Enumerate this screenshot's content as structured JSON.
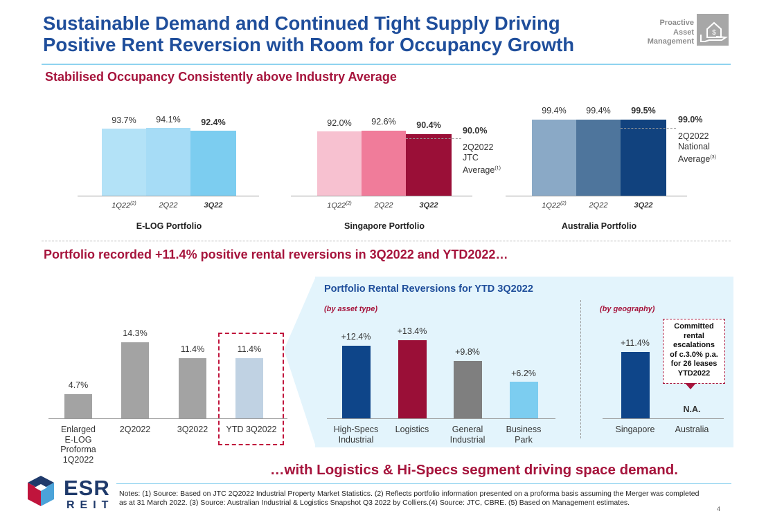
{
  "header": {
    "title_line1": "Sustainable Demand and Continued Tight Supply Driving",
    "title_line2": "Positive Rent Reversion with Room for Occupancy Growth",
    "badge_line1": "Proactive",
    "badge_line2": "Asset",
    "badge_line3": "Management",
    "badge_icon": "house-in-hand-icon"
  },
  "section1": {
    "heading": "Stabilised Occupancy Consistently above Industry Average"
  },
  "section2": {
    "heading": "Portfolio recorded +11.4% positive rental reversions in 3Q2022 and YTD2022…"
  },
  "occupancy": {
    "elog": {
      "title": "E-LOG Portfolio",
      "cats": [
        "1Q22",
        "2Q22",
        "3Q22"
      ],
      "cat1_sup": "(2)",
      "labels": [
        "93.7%",
        "94.1%",
        "92.4%"
      ]
    },
    "sg": {
      "title": "Singapore Portfolio",
      "cats": [
        "1Q22",
        "2Q22",
        "3Q22"
      ],
      "cat1_sup": "(2)",
      "labels": [
        "92.0%",
        "92.6%",
        "90.4%"
      ],
      "ref_value": "90.0%",
      "ref_line1": "2Q2022",
      "ref_line2": "JTC",
      "ref_line3": "Average",
      "ref_sup": "(1)"
    },
    "au": {
      "title": "Australia Portfolio",
      "cats": [
        "1Q22",
        "2Q22",
        "3Q22"
      ],
      "cat1_sup": "(2)",
      "labels": [
        "99.4%",
        "99.4%",
        "99.5%"
      ],
      "ref_value": "99.0%",
      "ref_line1": "2Q2022",
      "ref_line2": "National",
      "ref_line3": "Average",
      "ref_sup": "(3)"
    }
  },
  "reversion_history": {
    "cat1_lines": [
      "Enlarged",
      "E-LOG",
      "Proforma",
      "1Q2022"
    ],
    "cat2": "2Q2022",
    "cat3": "3Q2022",
    "cat4": "YTD 3Q2022",
    "labels": [
      "4.7%",
      "14.3%",
      "11.4%",
      "11.4%"
    ]
  },
  "panel": {
    "title": "Portfolio Rental Reversions for YTD 3Q2022",
    "asset_sub": "(by asset type)",
    "geo_sub": "(by geography)",
    "asset_cats": [
      [
        "High-Specs",
        "Industrial"
      ],
      [
        "Logistics"
      ],
      [
        "General",
        "Industrial"
      ],
      [
        "Business",
        "Park"
      ]
    ],
    "asset_labels": [
      "+12.4%",
      "+13.4%",
      "+9.8%",
      "+6.2%"
    ],
    "geo_cats": [
      "Singapore",
      "Australia"
    ],
    "geo_labels": [
      "+11.4%",
      "N.A."
    ],
    "callout": [
      "Committed",
      "rental",
      "escalations",
      "of c.3.0% p.a.",
      "for 26 leases",
      "YTD2022"
    ]
  },
  "conclusion": "…with Logistics & Hi-Specs segment driving space demand.",
  "footer": {
    "notes": "Notes: (1) Source: Based on JTC 2Q2022 Industrial Property Market Statistics. (2) Reflects portfolio information presented on a proforma basis assuming the Merger was completed as at 31 March 2022. (3) Source: Australian Industrial & Logistics Snapshot Q3 2022 by Colliers.(4) Source: JTC, CBRE. (5) Based on Management estimates.",
    "page_number": "4",
    "logo_text": "ESR",
    "logo_sub": "REIT",
    "logo_icon": "esr-cube-logo-icon"
  },
  "chart_data": [
    {
      "type": "bar",
      "title": "E-LOG Portfolio",
      "categories": [
        "1Q22",
        "2Q22",
        "3Q22"
      ],
      "values": [
        93.7,
        94.1,
        92.4
      ],
      "colors": [
        "#b3e2f7",
        "#a6dcf6",
        "#7ccdf0"
      ]
    },
    {
      "type": "bar",
      "title": "Singapore Portfolio",
      "categories": [
        "1Q22",
        "2Q22",
        "3Q22"
      ],
      "values": [
        92.0,
        92.6,
        90.4
      ],
      "reference_line": 90.0,
      "colors": [
        "#f7c1d0",
        "#f07c9a",
        "#9a0f37"
      ]
    },
    {
      "type": "bar",
      "title": "Australia Portfolio",
      "categories": [
        "1Q22",
        "2Q22",
        "3Q22"
      ],
      "values": [
        99.4,
        99.4,
        99.5
      ],
      "reference_line": 99.0,
      "colors": [
        "#8aa9c6",
        "#4e759c",
        "#11427e"
      ]
    },
    {
      "type": "bar",
      "categories": [
        "Enlarged E-LOG Proforma 1Q2022",
        "2Q2022",
        "3Q2022",
        "YTD 3Q2022"
      ],
      "values": [
        4.7,
        14.3,
        11.4,
        11.4
      ],
      "colors": [
        "#a3a3a3",
        "#a3a3a3",
        "#a3a3a3",
        "#c0d2e3"
      ]
    },
    {
      "type": "bar",
      "title": "Portfolio Rental Reversions for YTD 3Q2022 (by asset type)",
      "categories": [
        "High-Specs Industrial",
        "Logistics",
        "General Industrial",
        "Business Park"
      ],
      "values": [
        12.4,
        13.4,
        9.8,
        6.2
      ],
      "colors": [
        "#0e4589",
        "#9a0f37",
        "#7f7f7f",
        "#7ccdf0"
      ]
    },
    {
      "type": "bar",
      "title": "Portfolio Rental Reversions for YTD 3Q2022 (by geography)",
      "categories": [
        "Singapore",
        "Australia"
      ],
      "values": [
        11.4,
        null
      ],
      "colors": [
        "#0e4589"
      ]
    }
  ]
}
